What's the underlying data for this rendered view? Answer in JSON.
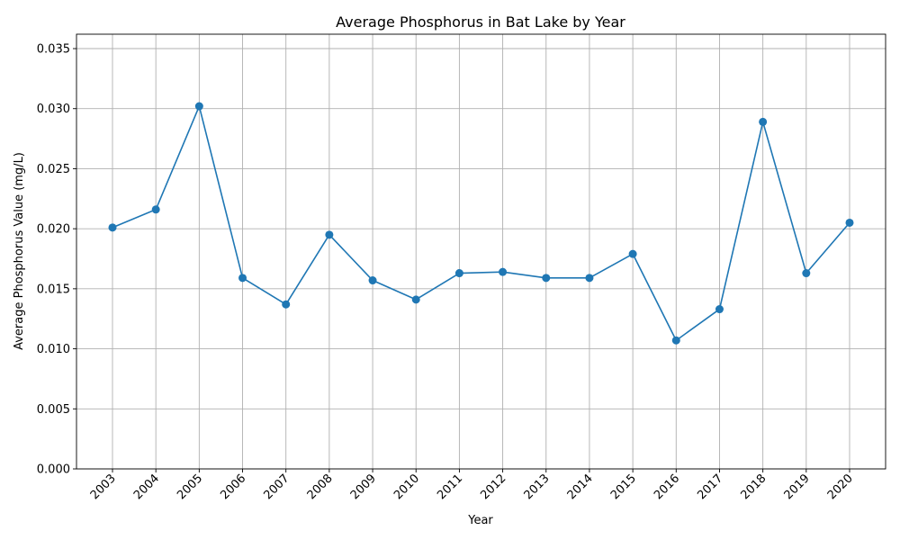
{
  "chart_data": {
    "type": "line",
    "title": "Average Phosphorus in Bat Lake by Year",
    "xlabel": "Year",
    "ylabel": "Average Phosphorus Value (mg/L)",
    "categories": [
      "2003",
      "2004",
      "2005",
      "2006",
      "2007",
      "2008",
      "2009",
      "2010",
      "2011",
      "2012",
      "2013",
      "2014",
      "2015",
      "2016",
      "2017",
      "2018",
      "2019",
      "2020"
    ],
    "series": [
      {
        "values": [
          0.0201,
          0.0216,
          0.0302,
          0.0159,
          0.0137,
          0.0195,
          0.0157,
          0.0141,
          0.0163,
          0.0164,
          0.0159,
          0.0159,
          0.0179,
          0.0107,
          0.0133,
          0.0289,
          0.0163,
          0.0205
        ],
        "color": "#1f77b4",
        "marker": "circle"
      }
    ],
    "ylim": [
      0,
      0.0362
    ],
    "yticks": [
      "0.000",
      "0.005",
      "0.010",
      "0.015",
      "0.020",
      "0.025",
      "0.030",
      "0.035"
    ],
    "grid": true,
    "legend": "none"
  }
}
